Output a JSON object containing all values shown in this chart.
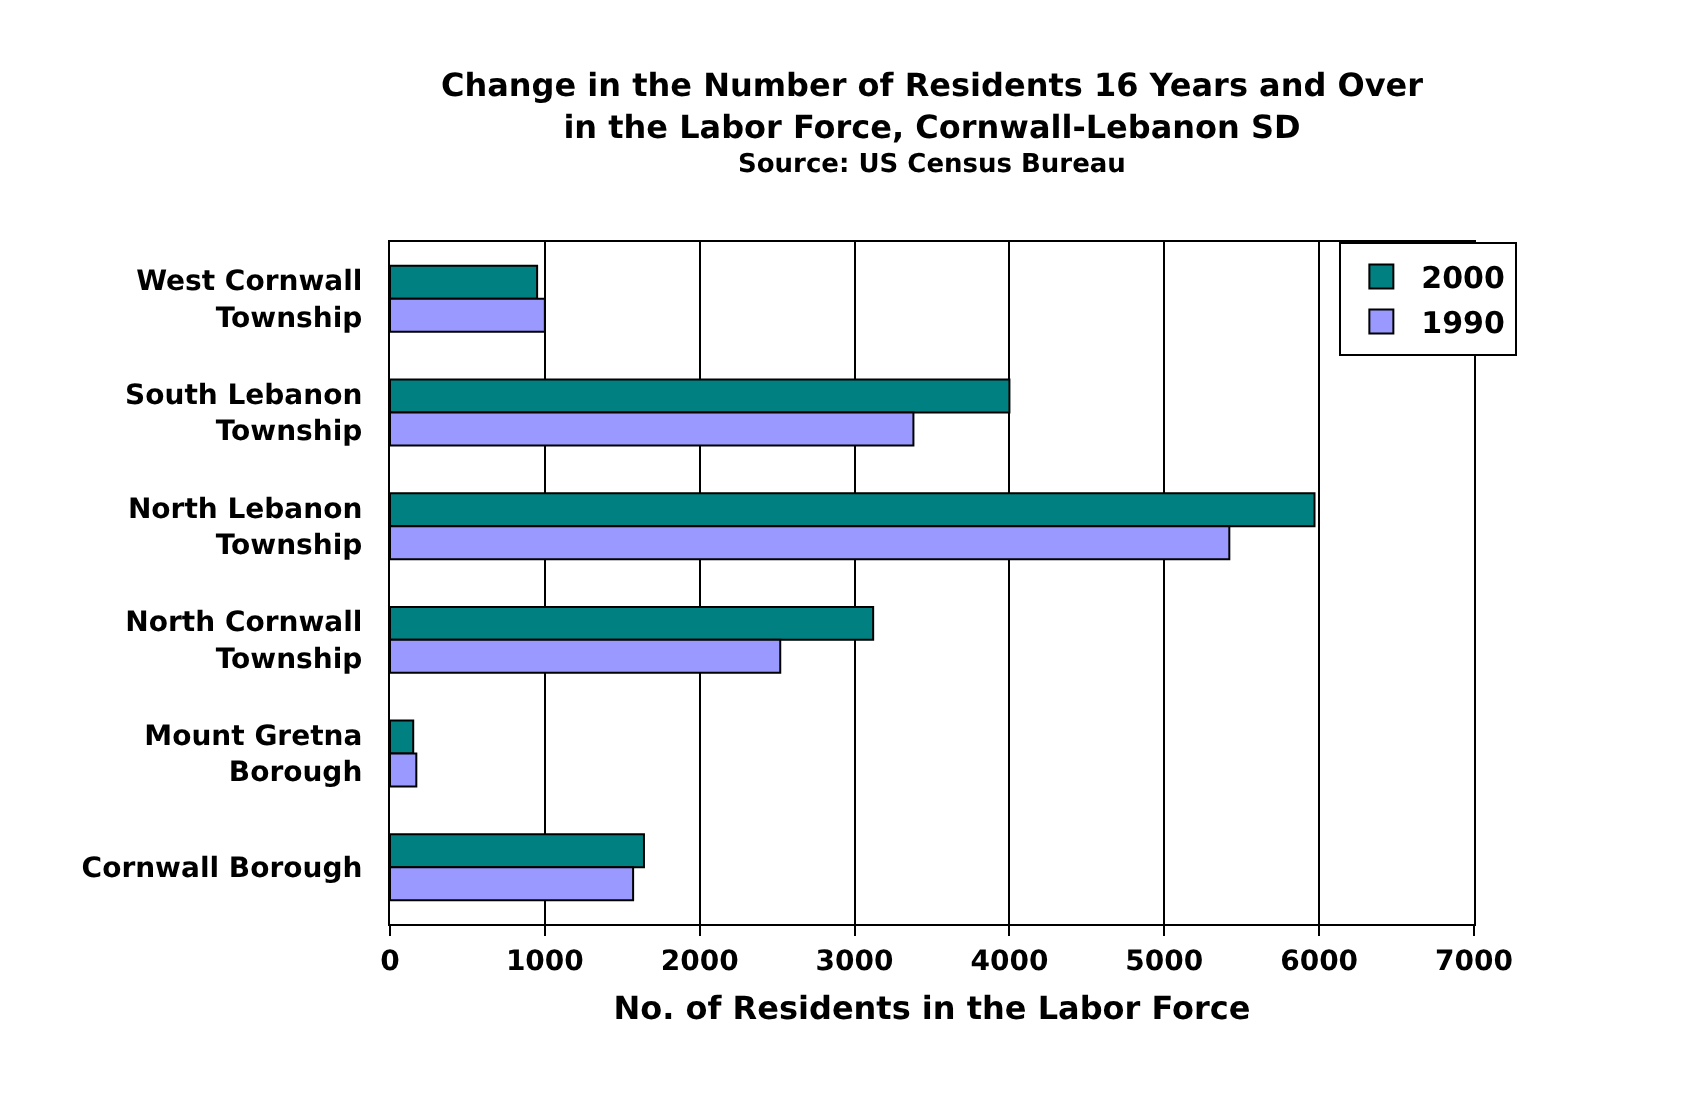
{
  "chart_data": {
    "type": "bar",
    "orientation": "horizontal",
    "title": "Change in the Number of Residents 16 Years and Over in the Labor Force, Cornwall-Lebanon SD",
    "subtitle": "Source: US Census Bureau",
    "xlabel": "No. of Residents in the Labor Force",
    "categories": [
      "West Cornwall Township",
      "South Lebanon Township",
      "North Lebanon Township",
      "North Cornwall Township",
      "Mount Gretna Borough",
      "Cornwall Borough"
    ],
    "series": [
      {
        "name": "2000",
        "color": "#008080",
        "values": [
          950,
          4000,
          5970,
          3120,
          150,
          1640
        ]
      },
      {
        "name": "1990",
        "color": "#9999ff",
        "values": [
          1000,
          3380,
          5420,
          2520,
          170,
          1570
        ]
      }
    ],
    "xlim": [
      0,
      7000
    ],
    "xticks": [
      0,
      1000,
      2000,
      3000,
      4000,
      5000,
      6000,
      7000
    ],
    "grid": "x",
    "legend": "top right"
  }
}
